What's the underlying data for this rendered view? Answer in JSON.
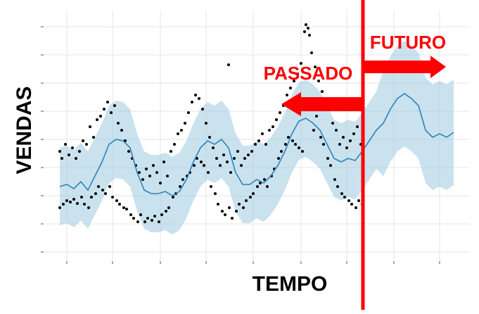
{
  "chart_data": {
    "type": "line",
    "y_label": "VENDAS",
    "x_label": "TEMPO",
    "annotations": [
      "PASSADO",
      "FUTURO"
    ],
    "xlim": [
      0,
      610
    ],
    "ylim": [
      0,
      360
    ],
    "xticks": [
      37,
      102,
      170,
      235,
      302,
      370,
      435,
      502,
      567
    ],
    "yticks": [
      17,
      57,
      97,
      137,
      177,
      217,
      257,
      297,
      337
    ],
    "grid": true,
    "color": "#2b83ba",
    "band_color": "#a6cee3",
    "x": [
      27,
      37,
      47,
      57,
      67,
      77,
      87,
      97,
      107,
      117,
      127,
      137,
      147,
      157,
      167,
      177,
      187,
      197,
      207,
      217,
      227,
      237,
      247,
      257,
      267,
      277,
      287,
      297,
      307,
      317,
      327,
      337,
      347,
      357,
      367,
      377,
      387,
      397,
      407,
      417,
      427,
      437,
      447,
      457,
      467,
      477,
      487,
      497,
      507,
      517,
      527,
      537,
      547,
      557,
      567,
      577,
      587
    ],
    "values": [
      110,
      113,
      107,
      117,
      105,
      125,
      145,
      170,
      177,
      175,
      165,
      130,
      105,
      100,
      100,
      103,
      97,
      103,
      120,
      145,
      165,
      175,
      170,
      177,
      165,
      130,
      113,
      113,
      120,
      115,
      125,
      140,
      160,
      185,
      203,
      207,
      200,
      190,
      170,
      150,
      145,
      150,
      147,
      160,
      175,
      190,
      200,
      220,
      235,
      242,
      235,
      225,
      190,
      180,
      185,
      180,
      187
    ],
    "upper": [
      165,
      168,
      162,
      172,
      160,
      180,
      200,
      225,
      232,
      230,
      220,
      185,
      160,
      155,
      155,
      158,
      152,
      158,
      175,
      200,
      220,
      230,
      225,
      232,
      220,
      185,
      168,
      168,
      175,
      170,
      180,
      195,
      215,
      240,
      258,
      262,
      255,
      245,
      225,
      205,
      200,
      205,
      202,
      215,
      230,
      245,
      275,
      295,
      310,
      317,
      310,
      300,
      265,
      255,
      260,
      255,
      262
    ],
    "lower": [
      55,
      58,
      52,
      62,
      50,
      70,
      90,
      115,
      122,
      120,
      110,
      75,
      50,
      45,
      45,
      48,
      42,
      48,
      65,
      90,
      110,
      120,
      115,
      122,
      110,
      75,
      58,
      58,
      65,
      60,
      70,
      85,
      105,
      130,
      148,
      152,
      145,
      135,
      115,
      95,
      90,
      95,
      92,
      105,
      120,
      135,
      125,
      145,
      160,
      167,
      160,
      150,
      115,
      105,
      110,
      105,
      112
    ],
    "scatter": {
      "color": "#000000",
      "x": [
        27,
        27,
        30,
        32,
        35,
        37,
        40,
        42,
        45,
        47,
        50,
        52,
        55,
        58,
        60,
        62,
        65,
        68,
        70,
        72,
        75,
        78,
        80,
        82,
        85,
        88,
        90,
        92,
        95,
        98,
        100,
        102,
        105,
        108,
        110,
        112,
        115,
        118,
        120,
        122,
        125,
        128,
        130,
        132,
        135,
        138,
        140,
        142,
        145,
        148,
        150,
        152,
        155,
        158,
        160,
        162,
        165,
        168,
        170,
        172,
        175,
        178,
        180,
        182,
        185,
        188,
        190,
        192,
        195,
        198,
        200,
        202,
        205,
        208,
        210,
        212,
        215,
        218,
        220,
        222,
        225,
        228,
        230,
        232,
        235,
        238,
        240,
        242,
        245,
        248,
        250,
        252,
        255,
        258,
        260,
        262,
        265,
        268,
        270,
        272,
        275,
        278,
        280,
        282,
        285,
        288,
        290,
        292,
        295,
        298,
        300,
        302,
        305,
        308,
        310,
        312,
        315,
        318,
        320,
        322,
        325,
        328,
        330,
        332,
        335,
        338,
        340,
        342,
        345,
        348,
        350,
        352,
        355,
        358,
        360,
        362,
        365,
        367,
        370,
        372,
        375,
        377,
        380,
        382,
        385,
        388,
        390,
        392,
        395,
        398,
        400,
        402,
        405,
        408,
        410,
        412,
        415,
        418,
        420,
        422,
        425,
        428,
        430,
        432,
        435,
        438,
        440,
        442,
        445,
        448,
        450,
        452,
        455,
        457,
        267
      ],
      "values": [
        160,
        80,
        150,
        85,
        170,
        90,
        155,
        88,
        165,
        92,
        150,
        86,
        160,
        95,
        175,
        85,
        170,
        80,
        195,
        95,
        180,
        100,
        205,
        110,
        210,
        105,
        220,
        100,
        230,
        110,
        215,
        95,
        225,
        90,
        200,
        85,
        190,
        80,
        175,
        78,
        160,
        70,
        150,
        65,
        140,
        60,
        130,
        70,
        120,
        60,
        135,
        65,
        125,
        62,
        140,
        68,
        130,
        60,
        115,
        70,
        145,
        75,
        125,
        80,
        160,
        95,
        170,
        100,
        185,
        110,
        190,
        120,
        200,
        125,
        215,
        130,
        230,
        140,
        240,
        150,
        235,
        145,
        220,
        140,
        200,
        130,
        180,
        110,
        165,
        100,
        150,
        85,
        140,
        75,
        155,
        70,
        145,
        80,
        130,
        65,
        150,
        75,
        160,
        85,
        140,
        80,
        150,
        90,
        155,
        95,
        160,
        100,
        170,
        110,
        175,
        115,
        185,
        120,
        170,
        110,
        190,
        125,
        195,
        135,
        205,
        150,
        215,
        160,
        225,
        170,
        240,
        180,
        250,
        175,
        260,
        170,
        270,
        165,
        285,
        160,
        330,
        340,
        335,
        325,
        300,
        190,
        280,
        210,
        260,
        180,
        245,
        170,
        230,
        150,
        220,
        140,
        200,
        120,
        190,
        110,
        170,
        100,
        180,
        95,
        165,
        90,
        175,
        85,
        185,
        80,
        195,
        90,
        170,
        85,
        283
      ]
    }
  }
}
